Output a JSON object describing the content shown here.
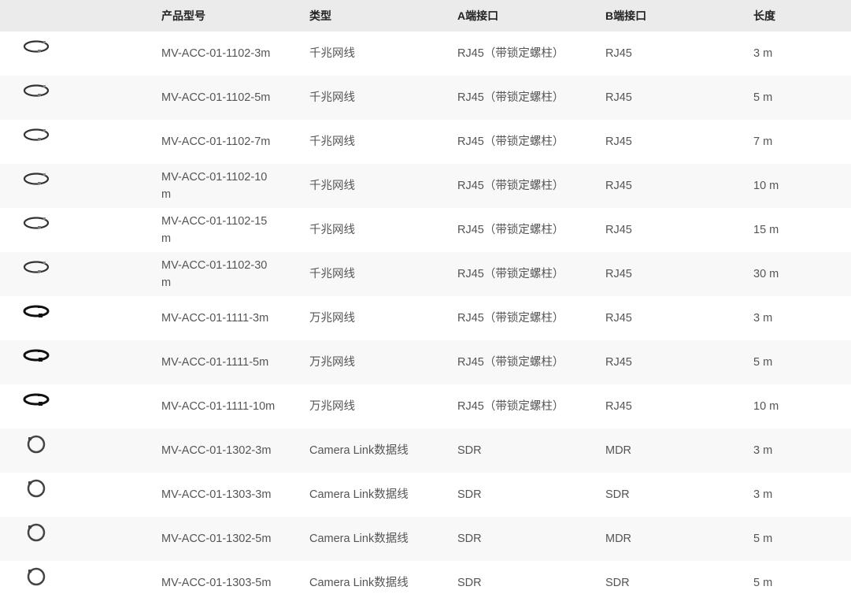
{
  "headers": {
    "image": "",
    "model": "产品型号",
    "type": "类型",
    "a_port": "A端接口",
    "b_port": "B端接口",
    "length": "长度"
  },
  "rows": [
    {
      "icon": "ethernet-cable-icon",
      "model": "MV-ACC-01-1102-3m",
      "type": "千兆网线",
      "a_port": "RJ45（带锁定螺柱）",
      "b_port": "RJ45",
      "length": "3 m"
    },
    {
      "icon": "ethernet-cable-icon",
      "model": "MV-ACC-01-1102-5m",
      "type": "千兆网线",
      "a_port": "RJ45（带锁定螺柱）",
      "b_port": "RJ45",
      "length": "5 m"
    },
    {
      "icon": "ethernet-cable-icon",
      "model": "MV-ACC-01-1102-7m",
      "type": "千兆网线",
      "a_port": "RJ45（带锁定螺柱）",
      "b_port": "RJ45",
      "length": "7 m"
    },
    {
      "icon": "ethernet-cable-icon",
      "model": "MV-ACC-01-1102-10m",
      "type": "千兆网线",
      "a_port": "RJ45（带锁定螺柱）",
      "b_port": "RJ45",
      "length": "10 m"
    },
    {
      "icon": "ethernet-cable-icon",
      "model": "MV-ACC-01-1102-15m",
      "type": "千兆网线",
      "a_port": "RJ45（带锁定螺柱）",
      "b_port": "RJ45",
      "length": "15 m"
    },
    {
      "icon": "ethernet-cable-icon",
      "model": "MV-ACC-01-1102-30m",
      "type": "千兆网线",
      "a_port": "RJ45（带锁定螺柱）",
      "b_port": "RJ45",
      "length": "30 m"
    },
    {
      "icon": "10g-ethernet-cable-icon",
      "model": "MV-ACC-01-1111-3m",
      "type": "万兆网线",
      "a_port": "RJ45（带锁定螺柱）",
      "b_port": "RJ45",
      "length": "3 m"
    },
    {
      "icon": "10g-ethernet-cable-icon",
      "model": "MV-ACC-01-1111-5m",
      "type": "万兆网线",
      "a_port": "RJ45（带锁定螺柱）",
      "b_port": "RJ45",
      "length": "5 m"
    },
    {
      "icon": "10g-ethernet-cable-icon",
      "model": "MV-ACC-01-1111-10m",
      "type": "万兆网线",
      "a_port": "RJ45（带锁定螺柱）",
      "b_port": "RJ45",
      "length": "10 m"
    },
    {
      "icon": "camera-link-cable-icon",
      "model": "MV-ACC-01-1302-3m",
      "type": "Camera Link数据线",
      "a_port": "SDR",
      "b_port": "MDR",
      "length": "3 m"
    },
    {
      "icon": "camera-link-cable-icon",
      "model": "MV-ACC-01-1303-3m",
      "type": "Camera Link数据线",
      "a_port": "SDR",
      "b_port": "SDR",
      "length": "3 m"
    },
    {
      "icon": "camera-link-cable-icon",
      "model": "MV-ACC-01-1302-5m",
      "type": "Camera Link数据线",
      "a_port": "SDR",
      "b_port": "MDR",
      "length": "5 m"
    },
    {
      "icon": "camera-link-cable-icon",
      "model": "MV-ACC-01-1303-5m",
      "type": "Camera Link数据线",
      "a_port": "SDR",
      "b_port": "SDR",
      "length": "5 m"
    }
  ]
}
